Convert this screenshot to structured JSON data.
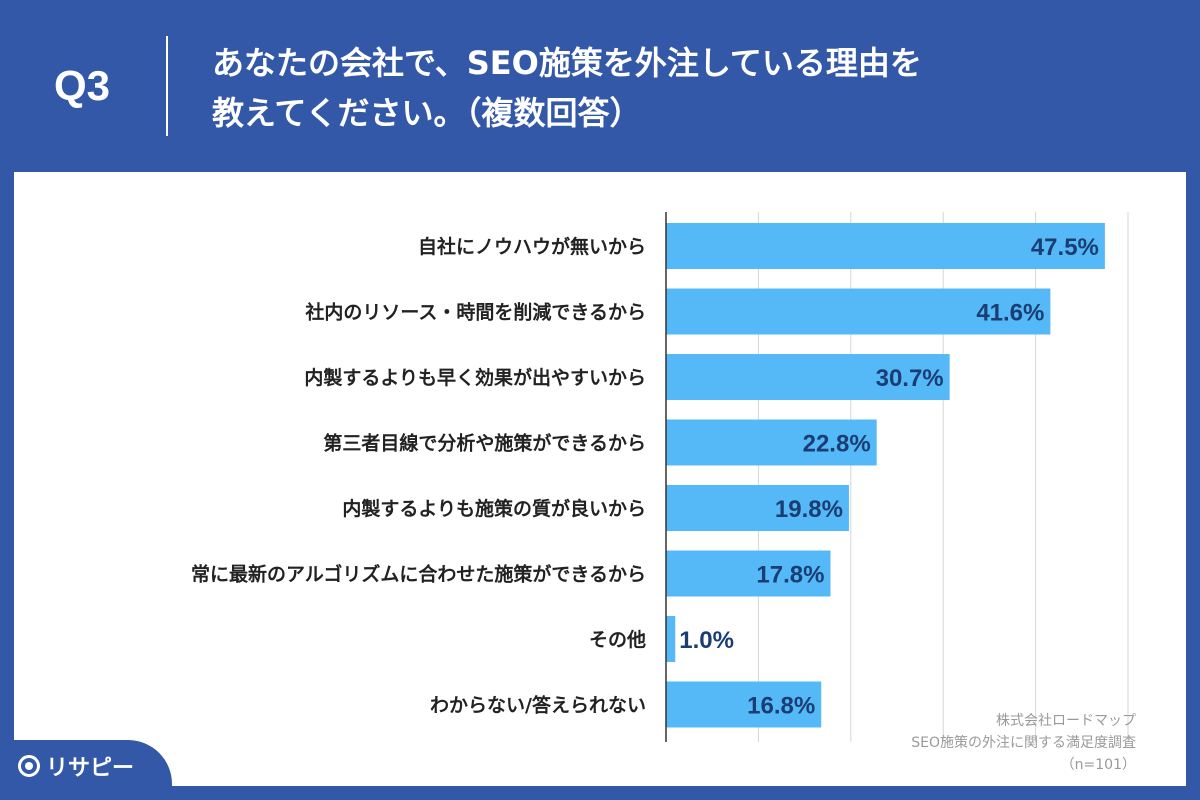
{
  "header": {
    "question": "Q3",
    "title_line1": "あなたの会社で、SEO施策を外注している理由を",
    "title_line2": "教えてください。（複数回答）"
  },
  "chart_data": {
    "type": "bar",
    "orientation": "horizontal",
    "categories": [
      "自社にノウハウが無いから",
      "社内のリソース・時間を削減できるから",
      "内製するよりも早く効果が出やすいから",
      "第三者目線で分析や施策ができるから",
      "内製するよりも施策の質が良いから",
      "常に最新のアルゴリズムに合わせた施策ができるから",
      "その他",
      "わからない/答えられない"
    ],
    "values": [
      47.5,
      41.6,
      30.7,
      22.8,
      19.8,
      17.8,
      1.0,
      16.8
    ],
    "value_labels": [
      "47.5%",
      "41.6%",
      "30.7%",
      "22.8%",
      "19.8%",
      "17.8%",
      "1.0%",
      "16.8%"
    ],
    "xlim": [
      0,
      50
    ],
    "grid": true,
    "colors": {
      "bar": "#55b8f7",
      "label": "#1a3d73",
      "grid": "#d6d6d6"
    }
  },
  "source": {
    "line1": "株式会社ロードマップ",
    "line2": "SEO施策の外注に関する満足度調査",
    "line3": "（n=101）"
  },
  "logo": {
    "text": "リサピー"
  }
}
